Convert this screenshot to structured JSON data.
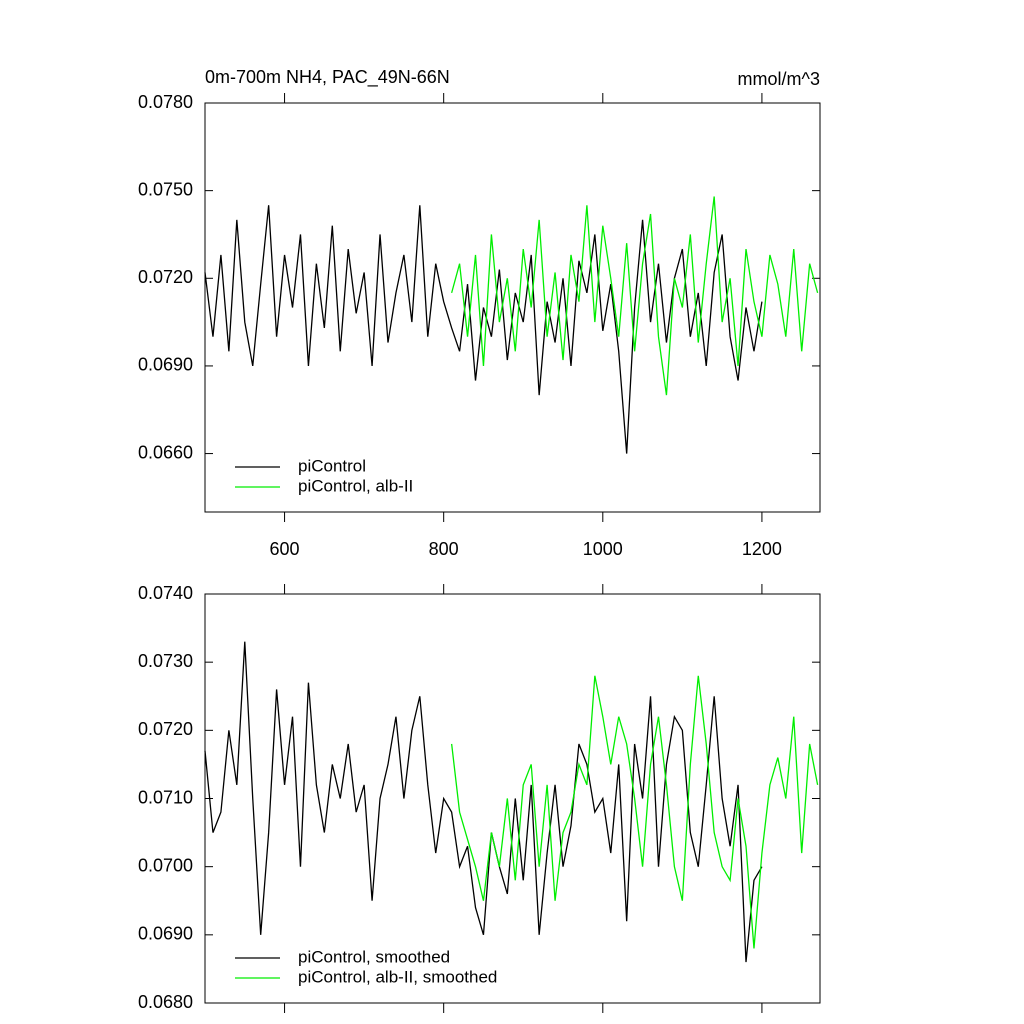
{
  "chart_data": [
    {
      "type": "line",
      "title": "0m-700m NH4, PAC_49N-66N",
      "units": "mmol/m^3",
      "xlim": [
        500,
        1273
      ],
      "ylim": [
        0.064,
        0.078
      ],
      "xticks": [
        600,
        800,
        1000,
        1200
      ],
      "yticks": [
        {
          "value": 0.066,
          "label": "0.0660"
        },
        {
          "value": 0.069,
          "label": "0.0690"
        },
        {
          "value": 0.072,
          "label": "0.0720"
        },
        {
          "value": 0.075,
          "label": "0.0750"
        },
        {
          "value": 0.078,
          "label": "0.0780"
        }
      ],
      "legend": "lower left",
      "series": [
        {
          "name": "piControl",
          "color": "#000000",
          "x": [
            500,
            510,
            520,
            530,
            540,
            550,
            560,
            570,
            580,
            590,
            600,
            610,
            620,
            630,
            640,
            650,
            660,
            670,
            680,
            690,
            700,
            710,
            720,
            730,
            740,
            750,
            760,
            770,
            780,
            790,
            800,
            810,
            820,
            830,
            840,
            850,
            860,
            870,
            880,
            890,
            900,
            910,
            920,
            930,
            940,
            950,
            960,
            970,
            980,
            990,
            1000,
            1010,
            1020,
            1030,
            1040,
            1050,
            1060,
            1070,
            1080,
            1090,
            1100,
            1110,
            1120,
            1130,
            1140,
            1150,
            1160,
            1170,
            1180,
            1190,
            1200
          ],
          "values": [
            0.0722,
            0.07,
            0.0728,
            0.0695,
            0.074,
            0.0705,
            0.069,
            0.0718,
            0.0745,
            0.07,
            0.0728,
            0.071,
            0.0735,
            0.069,
            0.0725,
            0.0703,
            0.0738,
            0.0695,
            0.073,
            0.0708,
            0.0722,
            0.069,
            0.0735,
            0.0698,
            0.0715,
            0.0728,
            0.0705,
            0.0745,
            0.07,
            0.0725,
            0.0712,
            0.0703,
            0.0695,
            0.0718,
            0.0685,
            0.071,
            0.07,
            0.0723,
            0.0692,
            0.0715,
            0.0705,
            0.0728,
            0.068,
            0.0712,
            0.0698,
            0.072,
            0.069,
            0.0726,
            0.0715,
            0.0735,
            0.0702,
            0.0718,
            0.0695,
            0.066,
            0.071,
            0.074,
            0.0705,
            0.0725,
            0.0698,
            0.072,
            0.073,
            0.07,
            0.0715,
            0.069,
            0.0722,
            0.0735,
            0.07,
            0.0685,
            0.071,
            0.0695,
            0.0712
          ]
        },
        {
          "name": "piControl, alb-II",
          "color": "#00ee00",
          "x": [
            810,
            820,
            830,
            840,
            850,
            860,
            870,
            880,
            890,
            900,
            910,
            920,
            930,
            940,
            950,
            960,
            970,
            980,
            990,
            1000,
            1010,
            1020,
            1030,
            1040,
            1050,
            1060,
            1070,
            1080,
            1090,
            1100,
            1110,
            1120,
            1130,
            1140,
            1150,
            1160,
            1170,
            1180,
            1190,
            1200,
            1210,
            1220,
            1230,
            1240,
            1250,
            1260,
            1270
          ],
          "values": [
            0.0715,
            0.0725,
            0.07,
            0.0728,
            0.069,
            0.0735,
            0.0705,
            0.072,
            0.0695,
            0.073,
            0.071,
            0.074,
            0.07,
            0.0722,
            0.0692,
            0.0728,
            0.0712,
            0.0745,
            0.0705,
            0.0738,
            0.072,
            0.07,
            0.0732,
            0.0695,
            0.0725,
            0.0742,
            0.07,
            0.068,
            0.072,
            0.071,
            0.0735,
            0.0698,
            0.0725,
            0.0748,
            0.0705,
            0.072,
            0.069,
            0.073,
            0.0712,
            0.07,
            0.0728,
            0.0718,
            0.07,
            0.073,
            0.0695,
            0.0725,
            0.0715
          ]
        }
      ]
    },
    {
      "type": "line",
      "xlim": [
        500,
        1273
      ],
      "ylim": [
        0.068,
        0.074
      ],
      "xticks": [
        600,
        800,
        1000,
        1200
      ],
      "yticks": [
        {
          "value": 0.068,
          "label": "0.0680"
        },
        {
          "value": 0.069,
          "label": "0.0690"
        },
        {
          "value": 0.07,
          "label": "0.0700"
        },
        {
          "value": 0.071,
          "label": "0.0710"
        },
        {
          "value": 0.072,
          "label": "0.0720"
        },
        {
          "value": 0.073,
          "label": "0.0730"
        },
        {
          "value": 0.074,
          "label": "0.0740"
        }
      ],
      "legend": "lower left",
      "series": [
        {
          "name": "piControl, smoothed",
          "color": "#000000",
          "x": [
            500,
            510,
            520,
            530,
            540,
            550,
            560,
            570,
            580,
            590,
            600,
            610,
            620,
            630,
            640,
            650,
            660,
            670,
            680,
            690,
            700,
            710,
            720,
            730,
            740,
            750,
            760,
            770,
            780,
            790,
            800,
            810,
            820,
            830,
            840,
            850,
            860,
            870,
            880,
            890,
            900,
            910,
            920,
            930,
            940,
            950,
            960,
            970,
            980,
            990,
            1000,
            1010,
            1020,
            1030,
            1040,
            1050,
            1060,
            1070,
            1080,
            1090,
            1100,
            1110,
            1120,
            1130,
            1140,
            1150,
            1160,
            1170,
            1180,
            1190,
            1200
          ],
          "values": [
            0.0717,
            0.0705,
            0.0708,
            0.072,
            0.0712,
            0.0733,
            0.071,
            0.069,
            0.0705,
            0.0726,
            0.0712,
            0.0722,
            0.07,
            0.0727,
            0.0712,
            0.0705,
            0.0715,
            0.071,
            0.0718,
            0.0708,
            0.0712,
            0.0695,
            0.071,
            0.0715,
            0.0722,
            0.071,
            0.072,
            0.0725,
            0.0712,
            0.0702,
            0.071,
            0.0708,
            0.07,
            0.0703,
            0.0694,
            0.069,
            0.0705,
            0.07,
            0.0696,
            0.071,
            0.0698,
            0.0712,
            0.069,
            0.0702,
            0.0712,
            0.07,
            0.0706,
            0.0718,
            0.0715,
            0.0708,
            0.071,
            0.0702,
            0.0715,
            0.0692,
            0.0718,
            0.071,
            0.0725,
            0.07,
            0.0715,
            0.0722,
            0.072,
            0.0705,
            0.07,
            0.0712,
            0.0725,
            0.071,
            0.0703,
            0.0712,
            0.0686,
            0.0698,
            0.07
          ]
        },
        {
          "name": "piControl, alb-II, smoothed",
          "color": "#00ee00",
          "x": [
            810,
            820,
            830,
            840,
            850,
            860,
            870,
            880,
            890,
            900,
            910,
            920,
            930,
            940,
            950,
            960,
            970,
            980,
            990,
            1000,
            1010,
            1020,
            1030,
            1040,
            1050,
            1060,
            1070,
            1080,
            1090,
            1100,
            1110,
            1120,
            1130,
            1140,
            1150,
            1160,
            1170,
            1180,
            1190,
            1200,
            1210,
            1220,
            1230,
            1240,
            1250,
            1260,
            1270
          ],
          "values": [
            0.0718,
            0.0708,
            0.0704,
            0.07,
            0.0695,
            0.0705,
            0.07,
            0.071,
            0.0698,
            0.0712,
            0.0715,
            0.07,
            0.0712,
            0.0695,
            0.0705,
            0.0708,
            0.0715,
            0.0712,
            0.0728,
            0.0722,
            0.0715,
            0.0722,
            0.0718,
            0.071,
            0.07,
            0.0715,
            0.0722,
            0.0712,
            0.07,
            0.0695,
            0.0715,
            0.0728,
            0.0718,
            0.0705,
            0.07,
            0.0698,
            0.071,
            0.0703,
            0.0688,
            0.0702,
            0.0712,
            0.0716,
            0.071,
            0.0722,
            0.0702,
            0.0718,
            0.0712
          ]
        }
      ]
    }
  ]
}
